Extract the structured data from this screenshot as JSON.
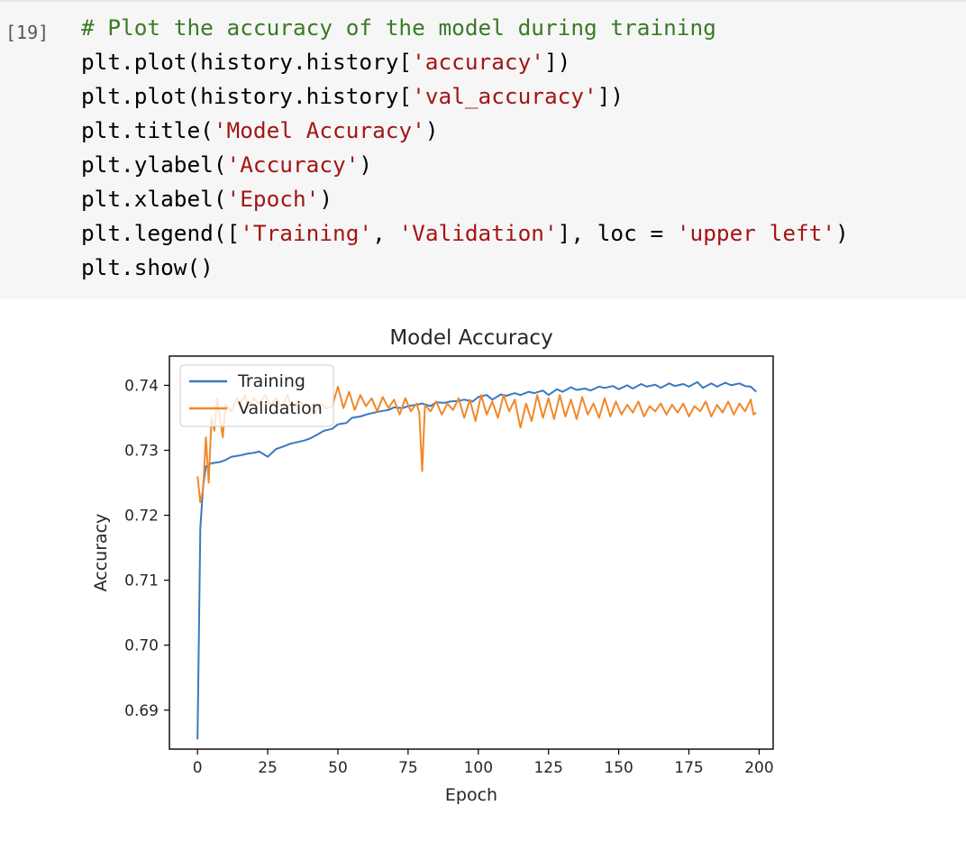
{
  "cell": {
    "execution_count": "[19]",
    "code_lines": [
      [
        {
          "t": "# Plot the accuracy of the model during training",
          "c": "comment"
        }
      ],
      [
        {
          "t": "plt.plot(history.history[",
          "c": "plain"
        },
        {
          "t": "'accuracy'",
          "c": "string"
        },
        {
          "t": "])",
          "c": "plain"
        }
      ],
      [
        {
          "t": "plt.plot(history.history[",
          "c": "plain"
        },
        {
          "t": "'val_accuracy'",
          "c": "string"
        },
        {
          "t": "])",
          "c": "plain"
        }
      ],
      [
        {
          "t": "plt.title(",
          "c": "plain"
        },
        {
          "t": "'Model Accuracy'",
          "c": "string"
        },
        {
          "t": ")",
          "c": "plain"
        }
      ],
      [
        {
          "t": "plt.ylabel(",
          "c": "plain"
        },
        {
          "t": "'Accuracy'",
          "c": "string"
        },
        {
          "t": ")",
          "c": "plain"
        }
      ],
      [
        {
          "t": "plt.xlabel(",
          "c": "plain"
        },
        {
          "t": "'Epoch'",
          "c": "string"
        },
        {
          "t": ")",
          "c": "plain"
        }
      ],
      [
        {
          "t": "plt.legend([",
          "c": "plain"
        },
        {
          "t": "'Training'",
          "c": "string"
        },
        {
          "t": ", ",
          "c": "plain"
        },
        {
          "t": "'Validation'",
          "c": "string"
        },
        {
          "t": "], loc = ",
          "c": "plain"
        },
        {
          "t": "'upper left'",
          "c": "string"
        },
        {
          "t": ")",
          "c": "plain"
        }
      ],
      [
        {
          "t": "plt.show()",
          "c": "plain"
        }
      ]
    ],
    "colors": {
      "comment": "#3a7a26",
      "string": "#a31515",
      "plain": "#000000",
      "background": "#f6f6f6"
    }
  },
  "chart_data": {
    "type": "line",
    "title": "Model Accuracy",
    "xlabel": "Epoch",
    "ylabel": "Accuracy",
    "xlim": [
      -10,
      205
    ],
    "ylim": [
      0.684,
      0.7445
    ],
    "xticks": [
      0,
      25,
      50,
      75,
      100,
      125,
      150,
      175,
      200
    ],
    "yticks": [
      0.69,
      0.7,
      0.71,
      0.72,
      0.73,
      0.74
    ],
    "ytick_labels": [
      "0.69",
      "0.70",
      "0.71",
      "0.72",
      "0.73",
      "0.74"
    ],
    "legend": {
      "position": "upper left",
      "entries": [
        "Training",
        "Validation"
      ]
    },
    "grid": false,
    "series": [
      {
        "name": "Training",
        "color": "#3a78c2",
        "x": [
          0,
          1,
          2,
          3,
          5,
          8,
          10,
          12,
          15,
          18,
          20,
          22,
          25,
          28,
          30,
          33,
          35,
          38,
          40,
          43,
          45,
          48,
          50,
          53,
          55,
          58,
          60,
          63,
          65,
          68,
          70,
          73,
          75,
          78,
          80,
          83,
          85,
          88,
          90,
          93,
          95,
          98,
          100,
          103,
          105,
          108,
          110,
          113,
          115,
          118,
          120,
          123,
          125,
          128,
          130,
          133,
          135,
          138,
          140,
          143,
          145,
          148,
          150,
          153,
          155,
          158,
          160,
          163,
          165,
          168,
          170,
          173,
          175,
          178,
          180,
          183,
          185,
          188,
          190,
          193,
          195,
          197,
          199
        ],
        "y": [
          0.6855,
          0.718,
          0.7245,
          0.7275,
          0.728,
          0.7282,
          0.7285,
          0.729,
          0.7292,
          0.7295,
          0.7296,
          0.7298,
          0.729,
          0.7302,
          0.7305,
          0.731,
          0.7312,
          0.7315,
          0.7318,
          0.7325,
          0.733,
          0.7333,
          0.734,
          0.7342,
          0.735,
          0.7352,
          0.7355,
          0.7358,
          0.736,
          0.7362,
          0.7366,
          0.7365,
          0.7368,
          0.737,
          0.7372,
          0.7368,
          0.7374,
          0.7373,
          0.7375,
          0.7376,
          0.7378,
          0.7375,
          0.7382,
          0.7385,
          0.7378,
          0.7386,
          0.7384,
          0.7388,
          0.7385,
          0.739,
          0.7388,
          0.7392,
          0.7385,
          0.7394,
          0.739,
          0.7397,
          0.7393,
          0.7395,
          0.7392,
          0.7398,
          0.7396,
          0.7399,
          0.7394,
          0.74,
          0.7395,
          0.7402,
          0.7398,
          0.7401,
          0.7396,
          0.7403,
          0.7399,
          0.7402,
          0.7398,
          0.7405,
          0.7396,
          0.7403,
          0.7398,
          0.7404,
          0.74,
          0.7403,
          0.7399,
          0.7398,
          0.739
        ]
      },
      {
        "name": "Validation",
        "color": "#f0882a",
        "x": [
          0,
          1,
          2,
          3,
          4,
          5,
          6,
          7,
          8,
          9,
          10,
          12,
          14,
          15,
          17,
          18,
          20,
          22,
          24,
          26,
          28,
          30,
          32,
          34,
          36,
          38,
          40,
          42,
          44,
          46,
          48,
          50,
          52,
          54,
          56,
          58,
          60,
          62,
          64,
          66,
          68,
          70,
          72,
          74,
          76,
          78,
          79,
          80,
          81,
          83,
          85,
          87,
          89,
          91,
          93,
          95,
          97,
          99,
          101,
          103,
          105,
          107,
          109,
          111,
          113,
          115,
          117,
          119,
          121,
          123,
          125,
          127,
          129,
          131,
          133,
          135,
          137,
          139,
          141,
          143,
          145,
          147,
          149,
          151,
          153,
          155,
          157,
          159,
          161,
          163,
          165,
          167,
          169,
          171,
          173,
          175,
          177,
          179,
          181,
          183,
          185,
          187,
          189,
          191,
          193,
          195,
          197,
          198,
          199
        ],
        "y": [
          0.726,
          0.722,
          0.724,
          0.732,
          0.725,
          0.735,
          0.733,
          0.738,
          0.735,
          0.732,
          0.737,
          0.736,
          0.738,
          0.737,
          0.7385,
          0.7365,
          0.738,
          0.7372,
          0.7385,
          0.737,
          0.738,
          0.7365,
          0.7385,
          0.736,
          0.7375,
          0.737,
          0.7365,
          0.7358,
          0.7372,
          0.7364,
          0.7368,
          0.7398,
          0.7365,
          0.739,
          0.7362,
          0.7385,
          0.7368,
          0.738,
          0.736,
          0.7382,
          0.7365,
          0.7378,
          0.7355,
          0.738,
          0.736,
          0.7372,
          0.7358,
          0.7268,
          0.737,
          0.736,
          0.7375,
          0.7355,
          0.7372,
          0.7362,
          0.738,
          0.735,
          0.7378,
          0.7345,
          0.7385,
          0.7355,
          0.7375,
          0.735,
          0.7385,
          0.736,
          0.7378,
          0.7335,
          0.7372,
          0.7345,
          0.7385,
          0.735,
          0.738,
          0.7348,
          0.7385,
          0.7352,
          0.7378,
          0.7348,
          0.7382,
          0.7355,
          0.7372,
          0.735,
          0.738,
          0.7352,
          0.7375,
          0.7355,
          0.737,
          0.7358,
          0.7375,
          0.7352,
          0.7368,
          0.736,
          0.7372,
          0.7355,
          0.737,
          0.7358,
          0.7372,
          0.7352,
          0.7368,
          0.736,
          0.7375,
          0.7352,
          0.737,
          0.7358,
          0.7375,
          0.7355,
          0.7372,
          0.736,
          0.7378,
          0.7355,
          0.7358
        ]
      }
    ]
  }
}
